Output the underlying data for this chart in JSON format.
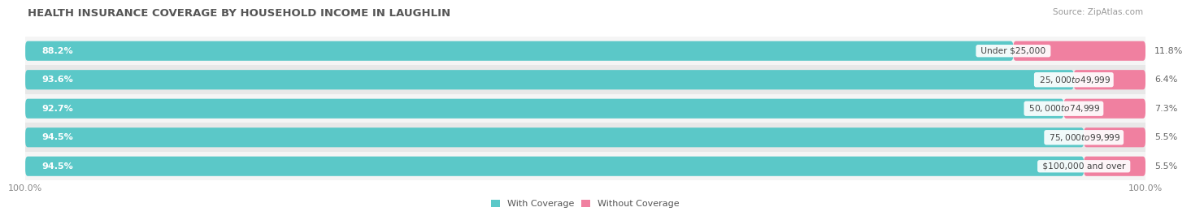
{
  "title": "HEALTH INSURANCE COVERAGE BY HOUSEHOLD INCOME IN LAUGHLIN",
  "source": "Source: ZipAtlas.com",
  "categories": [
    "Under $25,000",
    "$25,000 to $49,999",
    "$50,000 to $74,999",
    "$75,000 to $99,999",
    "$100,000 and over"
  ],
  "with_coverage": [
    88.2,
    93.6,
    92.7,
    94.5,
    94.5
  ],
  "without_coverage": [
    11.8,
    6.4,
    7.3,
    5.5,
    5.5
  ],
  "teal_color": "#5BC8C8",
  "pink_color": "#F080A0",
  "row_light": "#f5f5f5",
  "row_dark": "#e8e8e8",
  "title_fontsize": 9.5,
  "label_fontsize": 8,
  "tick_fontsize": 8,
  "legend_fontsize": 8,
  "source_fontsize": 7.5
}
